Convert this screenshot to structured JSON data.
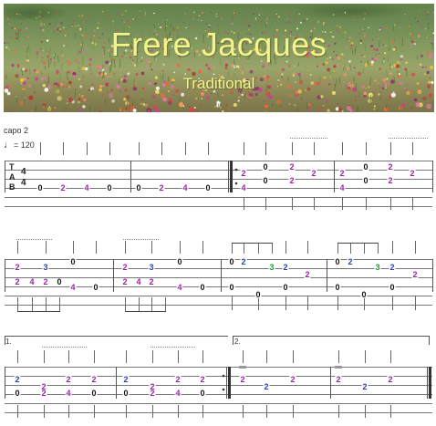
{
  "header": {
    "title": "Frere Jacques",
    "composer": "Traditional"
  },
  "score_info": {
    "capo": "capo 2",
    "tempo_value": "= 120",
    "tab_clef": [
      "T",
      "A",
      "B"
    ],
    "time_signature": {
      "top": "4",
      "bottom": "4"
    }
  },
  "volta_labels": [
    "1.",
    "2."
  ],
  "colors": {
    "fret_0": "#111111",
    "fret_2": "#9b1fa8",
    "fret_3": "#1a9e2a",
    "fret_4": "#9b1fa8",
    "alt_2": "#2a3fb8",
    "staff_line": "#777777",
    "barline": "#555555"
  },
  "systems": [
    {
      "notes": [
        {
          "string": 5,
          "fret": "0",
          "color": "fret_0"
        },
        {
          "string": 5,
          "fret": "2",
          "color": "fret_2"
        },
        {
          "string": 5,
          "fret": "4",
          "color": "fret_2"
        },
        {
          "string": 5,
          "fret": "0",
          "color": "fret_0"
        },
        {
          "string": 5,
          "fret": "0",
          "color": "fret_0"
        },
        {
          "string": 5,
          "fret": "2",
          "color": "fret_2"
        },
        {
          "string": 5,
          "fret": "4",
          "color": "fret_2"
        },
        {
          "string": 5,
          "fret": "0",
          "color": "fret_0"
        },
        {
          "string": 4,
          "fret": "2",
          "color": "fret_2"
        },
        {
          "string": 6,
          "fret": "4",
          "color": "fret_2"
        },
        {
          "string": 2,
          "fret": "0",
          "color": "fret_0"
        },
        {
          "string": 4,
          "fret": "0",
          "color": "fret_0"
        },
        {
          "string": 2,
          "fret": "2",
          "color": "fret_2"
        },
        {
          "string": 4,
          "fret": "2",
          "color": "fret_2"
        },
        {
          "string": 3,
          "fret": "2",
          "color": "fret_2"
        },
        {
          "string": 4,
          "fret": "2",
          "color": "fret_2"
        },
        {
          "string": 6,
          "fret": "4",
          "color": "fret_2"
        },
        {
          "string": 2,
          "fret": "0",
          "color": "fret_0"
        },
        {
          "string": 4,
          "fret": "0",
          "color": "fret_0"
        },
        {
          "string": 2,
          "fret": "2",
          "color": "fret_2"
        },
        {
          "string": 4,
          "fret": "2",
          "color": "fret_2"
        },
        {
          "string": 3,
          "fret": "2",
          "color": "fret_2"
        }
      ]
    },
    {
      "notes": [
        {
          "string": 3,
          "fret": "2",
          "color": "fret_2"
        },
        {
          "string": 5,
          "fret": "2",
          "color": "fret_2"
        },
        {
          "string": 5,
          "fret": "4",
          "color": "fret_2"
        },
        {
          "string": 3,
          "fret": "3",
          "color": "alt_2"
        },
        {
          "string": 5,
          "fret": "2",
          "color": "fret_2"
        },
        {
          "string": 2,
          "fret": "0",
          "color": "fret_0"
        },
        {
          "string": 5,
          "fret": "0",
          "color": "fret_0"
        },
        {
          "string": 6,
          "fret": "4",
          "color": "fret_2"
        },
        {
          "string": 6,
          "fret": "0",
          "color": "fret_0"
        },
        {
          "string": 3,
          "fret": "2",
          "color": "fret_2"
        },
        {
          "string": 5,
          "fret": "2",
          "color": "fret_2"
        },
        {
          "string": 5,
          "fret": "4",
          "color": "fret_2"
        },
        {
          "string": 3,
          "fret": "3",
          "color": "alt_2"
        },
        {
          "string": 5,
          "fret": "2",
          "color": "fret_2"
        },
        {
          "string": 2,
          "fret": "0",
          "color": "fret_0"
        },
        {
          "string": 6,
          "fret": "4",
          "color": "fret_2"
        },
        {
          "string": 6,
          "fret": "0",
          "color": "fret_0"
        },
        {
          "string": 2,
          "fret": "0",
          "color": "fret_0"
        },
        {
          "string": 2,
          "fret": "2",
          "color": "alt_2"
        },
        {
          "string": 3,
          "fret": "3",
          "color": "fret_3"
        },
        {
          "string": 3,
          "fret": "2",
          "color": "alt_2"
        },
        {
          "string": 4,
          "fret": "2",
          "color": "fret_2"
        },
        {
          "string": 5,
          "fret": "0",
          "color": "fret_0"
        },
        {
          "string": 6,
          "fret": "0",
          "color": "fret_0"
        },
        {
          "string": 5,
          "fret": "0",
          "color": "fret_0"
        },
        {
          "string": 2,
          "fret": "0",
          "color": "fret_0"
        },
        {
          "string": 2,
          "fret": "2",
          "color": "alt_2"
        },
        {
          "string": 3,
          "fret": "3",
          "color": "fret_3"
        },
        {
          "string": 3,
          "fret": "2",
          "color": "alt_2"
        },
        {
          "string": 4,
          "fret": "2",
          "color": "fret_2"
        },
        {
          "string": 5,
          "fret": "0",
          "color": "fret_0"
        },
        {
          "string": 6,
          "fret": "0",
          "color": "fret_0"
        },
        {
          "string": 5,
          "fret": "0",
          "color": "fret_0"
        }
      ]
    },
    {
      "notes": [
        {
          "string": 2,
          "fret": "2",
          "color": "alt_2"
        },
        {
          "string": 4,
          "fret": "0",
          "color": "fret_0"
        },
        {
          "string": 3,
          "fret": "2",
          "color": "fret_2"
        },
        {
          "string": 4,
          "fret": "2",
          "color": "fret_2"
        },
        {
          "string": 5,
          "fret": "2",
          "color": "fret_2"
        },
        {
          "string": 4,
          "fret": "4",
          "color": "fret_2"
        },
        {
          "string": 2,
          "fret": "2",
          "color": "fret_2"
        },
        {
          "string": 4,
          "fret": "0",
          "color": "fret_0"
        },
        {
          "string": 2,
          "fret": "2",
          "color": "alt_2"
        },
        {
          "string": 4,
          "fret": "0",
          "color": "fret_0"
        },
        {
          "string": 3,
          "fret": "2",
          "color": "fret_2"
        },
        {
          "string": 4,
          "fret": "2",
          "color": "fret_2"
        },
        {
          "string": 5,
          "fret": "2",
          "color": "fret_2"
        },
        {
          "string": 4,
          "fret": "4",
          "color": "fret_2"
        },
        {
          "string": 2,
          "fret": "2",
          "color": "fret_2"
        },
        {
          "string": 4,
          "fret": "0",
          "color": "fret_0"
        },
        {
          "string": 2,
          "fret": "2",
          "color": "fret_2"
        },
        {
          "string": 3,
          "fret": "2",
          "color": "alt_2"
        },
        {
          "string": 2,
          "fret": "2",
          "color": "fret_2"
        },
        {
          "string": 2,
          "fret": "2",
          "color": "fret_2"
        },
        {
          "string": 3,
          "fret": "2",
          "color": "alt_2"
        },
        {
          "string": 2,
          "fret": "2",
          "color": "fret_2"
        }
      ]
    }
  ]
}
